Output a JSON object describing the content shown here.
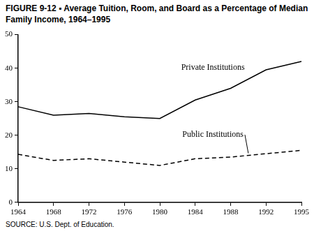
{
  "chart_data": {
    "type": "line",
    "title": "FIGURE 9-12 ▪ Average Tuition, Room, and Board as a Percentage of Median Family Income, 1964–1995",
    "source": "SOURCE: U.S. Dept. of Education.",
    "categories": [
      "1964",
      "1968",
      "1972",
      "1976",
      "1980",
      "1984",
      "1988",
      "1992",
      "1995"
    ],
    "series": [
      {
        "name": "Private Institutions",
        "color": "#000000",
        "line_style": "solid",
        "marker": "none",
        "values": [
          28.5,
          26,
          26.5,
          25.5,
          25,
          30.5,
          34,
          39.5,
          42
        ]
      },
      {
        "name": "Public Institutions",
        "color": "#000000",
        "line_style": "dashed",
        "marker": "none",
        "values": [
          14.3,
          12.5,
          13,
          12,
          11,
          13,
          13.5,
          14.5,
          15.5
        ]
      }
    ],
    "ylim": [
      0,
      50
    ],
    "yticks": [
      0,
      10,
      20,
      30,
      40,
      50
    ],
    "grid": false
  }
}
